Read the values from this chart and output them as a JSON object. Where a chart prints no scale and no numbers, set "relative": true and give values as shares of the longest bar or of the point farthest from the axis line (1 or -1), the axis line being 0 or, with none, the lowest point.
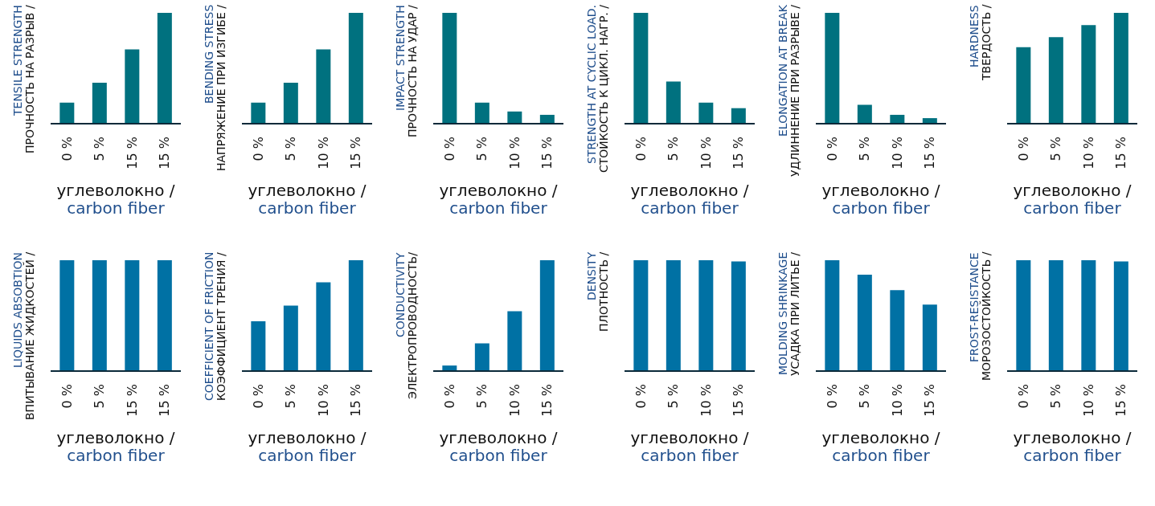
{
  "chart_data": [
    {
      "type": "bar",
      "relative": true,
      "ylabel": "ПРОЧНОСТЬ НА РАЗРЫВ /\nTENSILE STRENGTH",
      "xlabel": "углеволокно /\ncarbon fiber",
      "categories": [
        "0 %",
        "5 %",
        "15 %",
        "15 %"
      ],
      "values": [
        0.19,
        0.37,
        0.67,
        1
      ],
      "color": "#00717f"
    },
    {
      "type": "bar",
      "relative": true,
      "ylabel": "НАПРЯЖЕНИЕ ПРИ ИЗГИБЕ /\nBENDING STRESS",
      "xlabel": "углеволокно /\ncarbon fiber",
      "categories": [
        "0 %",
        "5 %",
        "10 %",
        "15 %"
      ],
      "values": [
        0.19,
        0.37,
        0.67,
        1
      ],
      "color": "#00717f"
    },
    {
      "type": "bar",
      "relative": true,
      "ylabel": "ПРОЧНОСТЬ НА УДАР /\nIMPACT STRENGTH",
      "xlabel": "углеволокно /\ncarbon fiber",
      "categories": [
        "0 %",
        "5 %",
        "10 %",
        "15 %"
      ],
      "values": [
        1,
        0.19,
        0.11,
        0.08
      ],
      "color": "#00717f"
    },
    {
      "type": "bar",
      "relative": true,
      "ylabel": "СТОЙКОСТЬ К ЦИКЛ. НАГР. /\nSTRENGTH AT CYCLIC LOAD.",
      "xlabel": "углеволокно /\ncarbon fiber",
      "categories": [
        "0 %",
        "5 %",
        "10 %",
        "15 %"
      ],
      "values": [
        1,
        0.38,
        0.19,
        0.14
      ],
      "color": "#00717f"
    },
    {
      "type": "bar",
      "relative": true,
      "ylabel": "УДЛИННЕНИЕ ПРИ РАЗРЫВЕ /\nELONGATION AT BREAK",
      "xlabel": "углеволокно /\ncarbon fiber",
      "categories": [
        "0 %",
        "5 %",
        "10 %",
        "15 %"
      ],
      "values": [
        1,
        0.17,
        0.08,
        0.05
      ],
      "color": "#00717f"
    },
    {
      "type": "bar",
      "relative": true,
      "ylabel": "ТВЕРДОСТЬ /\nHARDNESS",
      "xlabel": "углеволокно /\ncarbon fiber",
      "categories": [
        "0 %",
        "5 %",
        "10 %",
        "15 %"
      ],
      "values": [
        0.69,
        0.78,
        0.89,
        1
      ],
      "color": "#00717f"
    },
    {
      "type": "bar",
      "relative": true,
      "ylabel": "ВПИТЫВАНИЕ ЖИДКОСТЕЙ /\nLIQUIDS ABSOBTION",
      "xlabel": "углеволокно /\ncarbon fiber",
      "categories": [
        "0 %",
        "5 %",
        "15 %",
        "15 %"
      ],
      "values": [
        1,
        1,
        1,
        1
      ],
      "color": "#0071a4"
    },
    {
      "type": "bar",
      "relative": true,
      "ylabel": "КОЭФФИЦИЕНТ ТРЕНИЯ /\nCOEFFICIENT OF FRICTION",
      "xlabel": "углеволокно /\ncarbon fiber",
      "categories": [
        "0 %",
        "5 %",
        "10 %",
        "15 %"
      ],
      "values": [
        0.45,
        0.59,
        0.8,
        1
      ],
      "color": "#0071a4"
    },
    {
      "type": "bar",
      "relative": true,
      "ylabel": "ЭЛЕКТРОПРОВОДНОСТЬ/\nCONDUCTIVITY",
      "xlabel": "углеволокно /\ncarbon fiber",
      "categories": [
        "0 %",
        "5 %",
        "10 %",
        "15 %"
      ],
      "values": [
        0.05,
        0.25,
        0.54,
        1
      ],
      "color": "#0071a4"
    },
    {
      "type": "bar",
      "relative": true,
      "ylabel": "ПЛОТНОСТЬ /\nDENSITY",
      "xlabel": "углеволокно /\ncarbon fiber",
      "categories": [
        "0 %",
        "5 %",
        "10 %",
        "15 %"
      ],
      "values": [
        1,
        1,
        1,
        0.99
      ],
      "color": "#0071a4"
    },
    {
      "type": "bar",
      "relative": true,
      "ylabel": "УСАДКА ПРИ ЛИТЬЕ /\nMOLDING SHRINKAGE",
      "xlabel": "углеволокно /\ncarbon fiber",
      "categories": [
        "0 %",
        "5 %",
        "10 %",
        "15 %"
      ],
      "values": [
        1,
        0.87,
        0.73,
        0.6
      ],
      "color": "#0071a4"
    },
    {
      "type": "bar",
      "relative": true,
      "ylabel": "МОРОЗОСТОЙКОСТЬ /\nFROST-RESISTANCE",
      "xlabel": "углеволокно /\ncarbon fiber",
      "categories": [
        "0 %",
        "5 %",
        "10 %",
        "15 %"
      ],
      "values": [
        1,
        1,
        1,
        0.99
      ],
      "color": "#0071a4"
    }
  ]
}
